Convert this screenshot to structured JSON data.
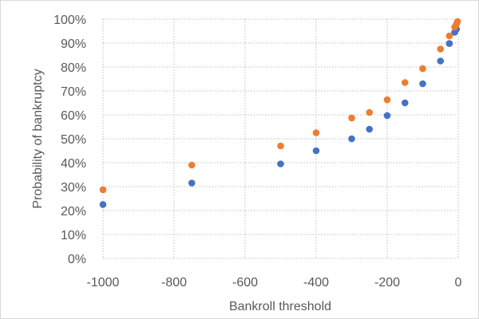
{
  "chart_data": {
    "type": "scatter",
    "title": "",
    "xlabel": "Bankroll threshold",
    "ylabel": "Probability of bankruptcy",
    "xlim": [
      -1000,
      0
    ],
    "ylim": [
      0,
      1
    ],
    "x_ticks": [
      -1000,
      -800,
      -600,
      -400,
      -200,
      0
    ],
    "x_tick_labels": [
      "-1000",
      "-800",
      "-600",
      "-400",
      "-200",
      "0"
    ],
    "y_ticks": [
      0,
      0.1,
      0.2,
      0.3,
      0.4,
      0.5,
      0.6,
      0.7,
      0.8,
      0.9,
      1.0
    ],
    "y_tick_labels": [
      "0%",
      "10%",
      "20%",
      "30%",
      "40%",
      "50%",
      "60%",
      "70%",
      "80%",
      "90%",
      "100%"
    ],
    "grid": {
      "x": true,
      "y": true,
      "style": "dotted"
    },
    "legend": "none",
    "series": [
      {
        "color": "#4472c4",
        "points": [
          {
            "x": -1000,
            "y": 0.225
          },
          {
            "x": -750,
            "y": 0.315
          },
          {
            "x": -500,
            "y": 0.395
          },
          {
            "x": -400,
            "y": 0.45
          },
          {
            "x": -300,
            "y": 0.5
          },
          {
            "x": -250,
            "y": 0.54
          },
          {
            "x": -200,
            "y": 0.597
          },
          {
            "x": -150,
            "y": 0.65
          },
          {
            "x": -100,
            "y": 0.73
          },
          {
            "x": -50,
            "y": 0.825
          },
          {
            "x": -25,
            "y": 0.898
          },
          {
            "x": -10,
            "y": 0.945
          },
          {
            "x": -5,
            "y": 0.958
          }
        ]
      },
      {
        "color": "#ed7d31",
        "points": [
          {
            "x": -1000,
            "y": 0.287
          },
          {
            "x": -750,
            "y": 0.39
          },
          {
            "x": -500,
            "y": 0.47
          },
          {
            "x": -400,
            "y": 0.525
          },
          {
            "x": -300,
            "y": 0.587
          },
          {
            "x": -250,
            "y": 0.61
          },
          {
            "x": -200,
            "y": 0.663
          },
          {
            "x": -150,
            "y": 0.735
          },
          {
            "x": -100,
            "y": 0.793
          },
          {
            "x": -50,
            "y": 0.875
          },
          {
            "x": -25,
            "y": 0.93
          },
          {
            "x": -10,
            "y": 0.967
          },
          {
            "x": -5,
            "y": 0.98
          },
          {
            "x": -2,
            "y": 0.99
          }
        ]
      }
    ]
  }
}
